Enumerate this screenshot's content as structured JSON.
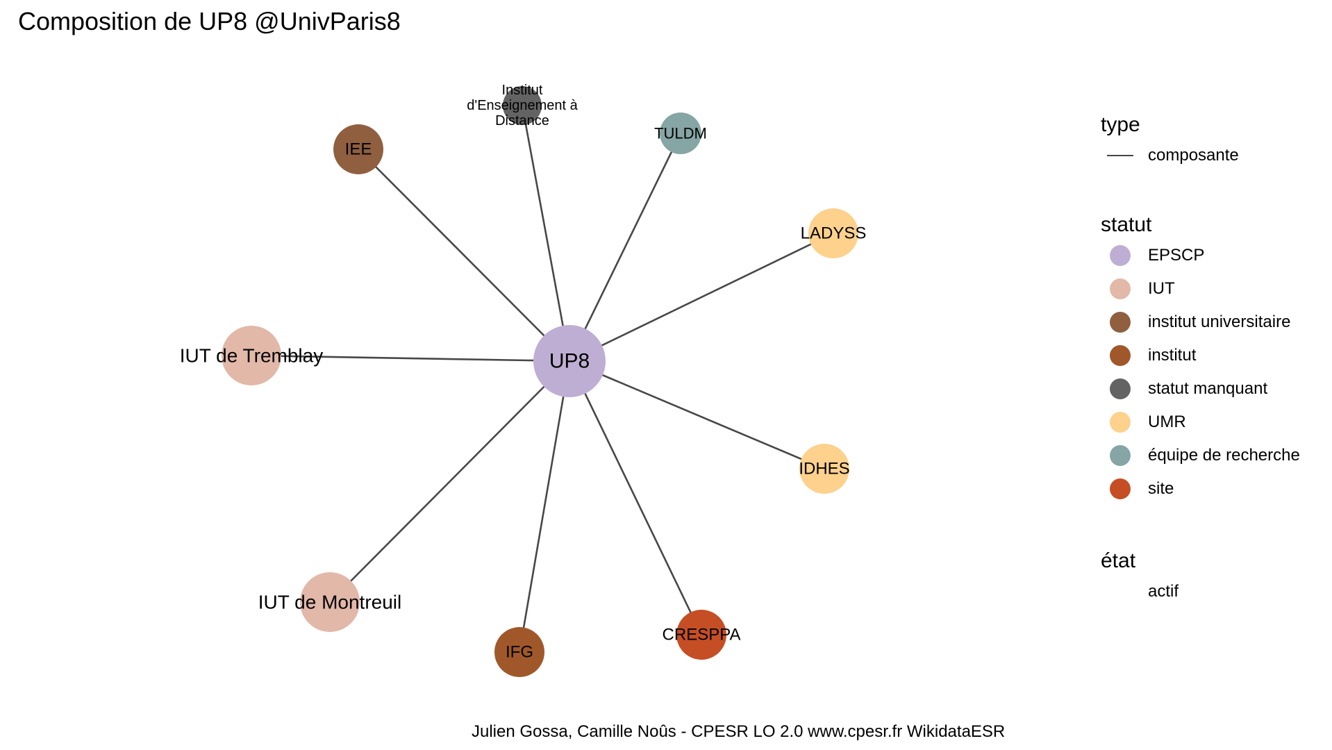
{
  "title": "Composition de UP8 @UnivParis8",
  "caption": "Julien Gossa, Camille Noûs - CPESR LO 2.0 www.cpesr.fr WikidataESR",
  "colors": {
    "edge": "#474747",
    "EPSCP": "#bfaed3",
    "IUT": "#e2b8a9",
    "institut universitaire": "#8f5f40",
    "institut": "#a0582a",
    "statut manquant": "#636363",
    "UMR": "#fed18c",
    "équipe de recherche": "#86a5a5",
    "site": "#c64e24"
  },
  "graph": {
    "center": {
      "id": "up8",
      "label": "UP8",
      "statut": "EPSCP"
    },
    "nodes": [
      {
        "id": "iea",
        "label_lines": [
          "Institut",
          "d'Enseignement à",
          "Distance"
        ],
        "statut": "statut manquant"
      },
      {
        "id": "tuldm",
        "label_lines": [
          "TULDM"
        ],
        "statut": "équipe de recherche"
      },
      {
        "id": "iee",
        "label_lines": [
          "IEE"
        ],
        "statut": "institut universitaire"
      },
      {
        "id": "ladyss",
        "label_lines": [
          "LADYSS"
        ],
        "statut": "UMR"
      },
      {
        "id": "iut-tremblay",
        "label_lines": [
          "IUT de Tremblay"
        ],
        "statut": "IUT"
      },
      {
        "id": "idhes",
        "label_lines": [
          "IDHES"
        ],
        "statut": "UMR"
      },
      {
        "id": "iut-montreuil",
        "label_lines": [
          "IUT de Montreuil"
        ],
        "statut": "IUT"
      },
      {
        "id": "ifg",
        "label_lines": [
          "IFG"
        ],
        "statut": "institut"
      },
      {
        "id": "cresppa",
        "label_lines": [
          "CRESPPA"
        ],
        "statut": "site"
      }
    ],
    "edges": [
      {
        "from": "up8",
        "to": "iea",
        "type": "composante"
      },
      {
        "from": "up8",
        "to": "tuldm",
        "type": "composante"
      },
      {
        "from": "up8",
        "to": "iee",
        "type": "composante"
      },
      {
        "from": "up8",
        "to": "ladyss",
        "type": "composante"
      },
      {
        "from": "up8",
        "to": "iut-tremblay",
        "type": "composante"
      },
      {
        "from": "up8",
        "to": "idhes",
        "type": "composante"
      },
      {
        "from": "up8",
        "to": "iut-montreuil",
        "type": "composante"
      },
      {
        "from": "up8",
        "to": "ifg",
        "type": "composante"
      },
      {
        "from": "up8",
        "to": "cresppa",
        "type": "composante"
      }
    ]
  },
  "legend": {
    "type": {
      "heading": "type",
      "items": [
        "composante"
      ]
    },
    "statut": {
      "heading": "statut",
      "items": [
        "EPSCP",
        "IUT",
        "institut universitaire",
        "institut",
        "statut manquant",
        "UMR",
        "équipe de recherche",
        "site"
      ]
    },
    "etat": {
      "heading": "état",
      "items": [
        "actif"
      ]
    }
  }
}
